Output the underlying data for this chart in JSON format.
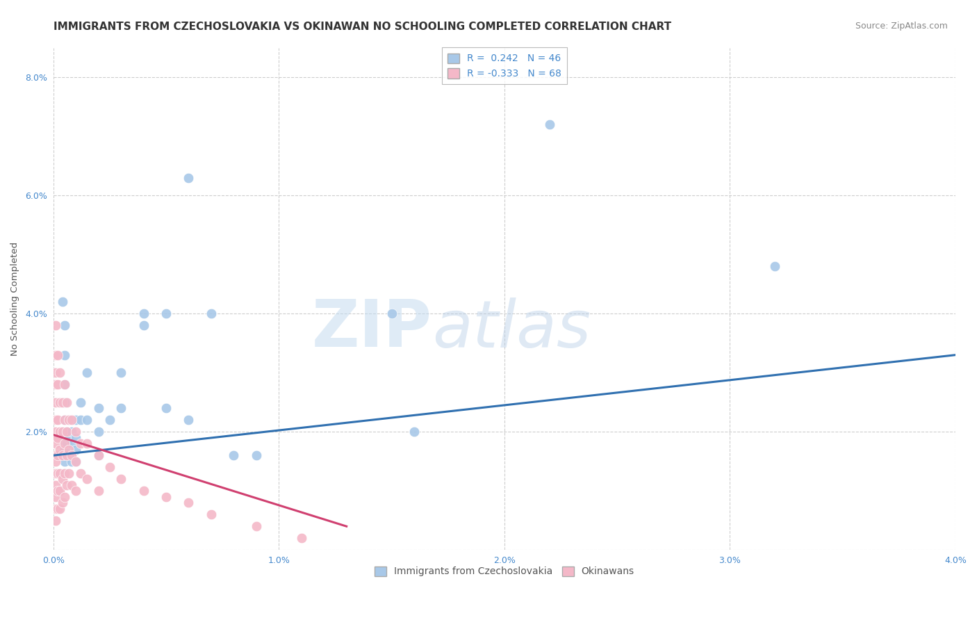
{
  "title": "IMMIGRANTS FROM CZECHOSLOVAKIA VS OKINAWAN NO SCHOOLING COMPLETED CORRELATION CHART",
  "source": "Source: ZipAtlas.com",
  "ylabel": "No Schooling Completed",
  "xlabel": "",
  "xlim": [
    0.0,
    0.04
  ],
  "ylim": [
    0.0,
    0.085
  ],
  "xticks": [
    0.0,
    0.01,
    0.02,
    0.03,
    0.04
  ],
  "yticks": [
    0.0,
    0.02,
    0.04,
    0.06,
    0.08
  ],
  "xticklabels": [
    "0.0%",
    "1.0%",
    "2.0%",
    "3.0%",
    "4.0%"
  ],
  "yticklabels": [
    "",
    "2.0%",
    "4.0%",
    "6.0%",
    "8.0%"
  ],
  "blue_R": "0.242",
  "blue_N": "46",
  "pink_R": "-0.333",
  "pink_N": "68",
  "blue_color": "#a8c8e8",
  "pink_color": "#f4b8c8",
  "blue_line_color": "#3070b0",
  "pink_line_color": "#d04070",
  "watermark_zip": "ZIP",
  "watermark_atlas": "atlas",
  "legend_label_blue": "Immigrants from Czechoslovakia",
  "legend_label_pink": "Okinawans",
  "blue_line_x0": 0.0,
  "blue_line_y0": 0.016,
  "blue_line_x1": 0.04,
  "blue_line_y1": 0.033,
  "pink_line_x0": 0.0,
  "pink_line_y0": 0.0195,
  "pink_line_x1": 0.013,
  "pink_line_y1": 0.004,
  "blue_points": [
    [
      0.0004,
      0.042
    ],
    [
      0.0005,
      0.038
    ],
    [
      0.0005,
      0.033
    ],
    [
      0.0005,
      0.028
    ],
    [
      0.0005,
      0.025
    ],
    [
      0.0005,
      0.022
    ],
    [
      0.0005,
      0.02
    ],
    [
      0.0005,
      0.019
    ],
    [
      0.0005,
      0.018
    ],
    [
      0.0005,
      0.017
    ],
    [
      0.0005,
      0.015
    ],
    [
      0.0006,
      0.02
    ],
    [
      0.0006,
      0.018
    ],
    [
      0.0007,
      0.022
    ],
    [
      0.0007,
      0.019
    ],
    [
      0.0007,
      0.016
    ],
    [
      0.0008,
      0.02
    ],
    [
      0.0008,
      0.018
    ],
    [
      0.0008,
      0.015
    ],
    [
      0.001,
      0.022
    ],
    [
      0.001,
      0.019
    ],
    [
      0.001,
      0.017
    ],
    [
      0.001,
      0.015
    ],
    [
      0.0012,
      0.025
    ],
    [
      0.0012,
      0.022
    ],
    [
      0.0015,
      0.03
    ],
    [
      0.0015,
      0.022
    ],
    [
      0.002,
      0.024
    ],
    [
      0.002,
      0.02
    ],
    [
      0.002,
      0.016
    ],
    [
      0.0025,
      0.022
    ],
    [
      0.003,
      0.03
    ],
    [
      0.003,
      0.024
    ],
    [
      0.004,
      0.04
    ],
    [
      0.004,
      0.038
    ],
    [
      0.005,
      0.04
    ],
    [
      0.005,
      0.024
    ],
    [
      0.006,
      0.063
    ],
    [
      0.006,
      0.022
    ],
    [
      0.007,
      0.04
    ],
    [
      0.008,
      0.016
    ],
    [
      0.009,
      0.016
    ],
    [
      0.015,
      0.04
    ],
    [
      0.016,
      0.02
    ],
    [
      0.022,
      0.072
    ],
    [
      0.032,
      0.048
    ]
  ],
  "pink_points": [
    [
      0.0001,
      0.038
    ],
    [
      0.0001,
      0.033
    ],
    [
      0.0001,
      0.03
    ],
    [
      0.0001,
      0.028
    ],
    [
      0.0001,
      0.025
    ],
    [
      0.0001,
      0.022
    ],
    [
      0.0001,
      0.02
    ],
    [
      0.0001,
      0.019
    ],
    [
      0.0001,
      0.018
    ],
    [
      0.0001,
      0.016
    ],
    [
      0.0001,
      0.015
    ],
    [
      0.0001,
      0.013
    ],
    [
      0.0001,
      0.011
    ],
    [
      0.0001,
      0.009
    ],
    [
      0.0001,
      0.007
    ],
    [
      0.0001,
      0.005
    ],
    [
      0.0002,
      0.033
    ],
    [
      0.0002,
      0.028
    ],
    [
      0.0002,
      0.022
    ],
    [
      0.0002,
      0.019
    ],
    [
      0.0002,
      0.016
    ],
    [
      0.0002,
      0.013
    ],
    [
      0.0002,
      0.01
    ],
    [
      0.0002,
      0.007
    ],
    [
      0.0003,
      0.03
    ],
    [
      0.0003,
      0.025
    ],
    [
      0.0003,
      0.02
    ],
    [
      0.0003,
      0.017
    ],
    [
      0.0003,
      0.013
    ],
    [
      0.0003,
      0.01
    ],
    [
      0.0003,
      0.007
    ],
    [
      0.0004,
      0.025
    ],
    [
      0.0004,
      0.02
    ],
    [
      0.0004,
      0.016
    ],
    [
      0.0004,
      0.012
    ],
    [
      0.0004,
      0.008
    ],
    [
      0.0005,
      0.028
    ],
    [
      0.0005,
      0.022
    ],
    [
      0.0005,
      0.018
    ],
    [
      0.0005,
      0.013
    ],
    [
      0.0005,
      0.009
    ],
    [
      0.0006,
      0.025
    ],
    [
      0.0006,
      0.02
    ],
    [
      0.0006,
      0.016
    ],
    [
      0.0006,
      0.011
    ],
    [
      0.0007,
      0.022
    ],
    [
      0.0007,
      0.017
    ],
    [
      0.0007,
      0.013
    ],
    [
      0.0008,
      0.022
    ],
    [
      0.0008,
      0.016
    ],
    [
      0.0008,
      0.011
    ],
    [
      0.001,
      0.02
    ],
    [
      0.001,
      0.015
    ],
    [
      0.001,
      0.01
    ],
    [
      0.0012,
      0.018
    ],
    [
      0.0012,
      0.013
    ],
    [
      0.0015,
      0.018
    ],
    [
      0.0015,
      0.012
    ],
    [
      0.002,
      0.016
    ],
    [
      0.002,
      0.01
    ],
    [
      0.0025,
      0.014
    ],
    [
      0.003,
      0.012
    ],
    [
      0.004,
      0.01
    ],
    [
      0.005,
      0.009
    ],
    [
      0.006,
      0.008
    ],
    [
      0.007,
      0.006
    ],
    [
      0.009,
      0.004
    ],
    [
      0.011,
      0.002
    ]
  ],
  "background_color": "#ffffff",
  "grid_color": "#c8c8c8",
  "title_color": "#333333",
  "tick_color": "#4488cc",
  "title_fontsize": 11,
  "axis_label_fontsize": 9.5,
  "tick_fontsize": 9,
  "legend_fontsize": 10,
  "source_fontsize": 9
}
